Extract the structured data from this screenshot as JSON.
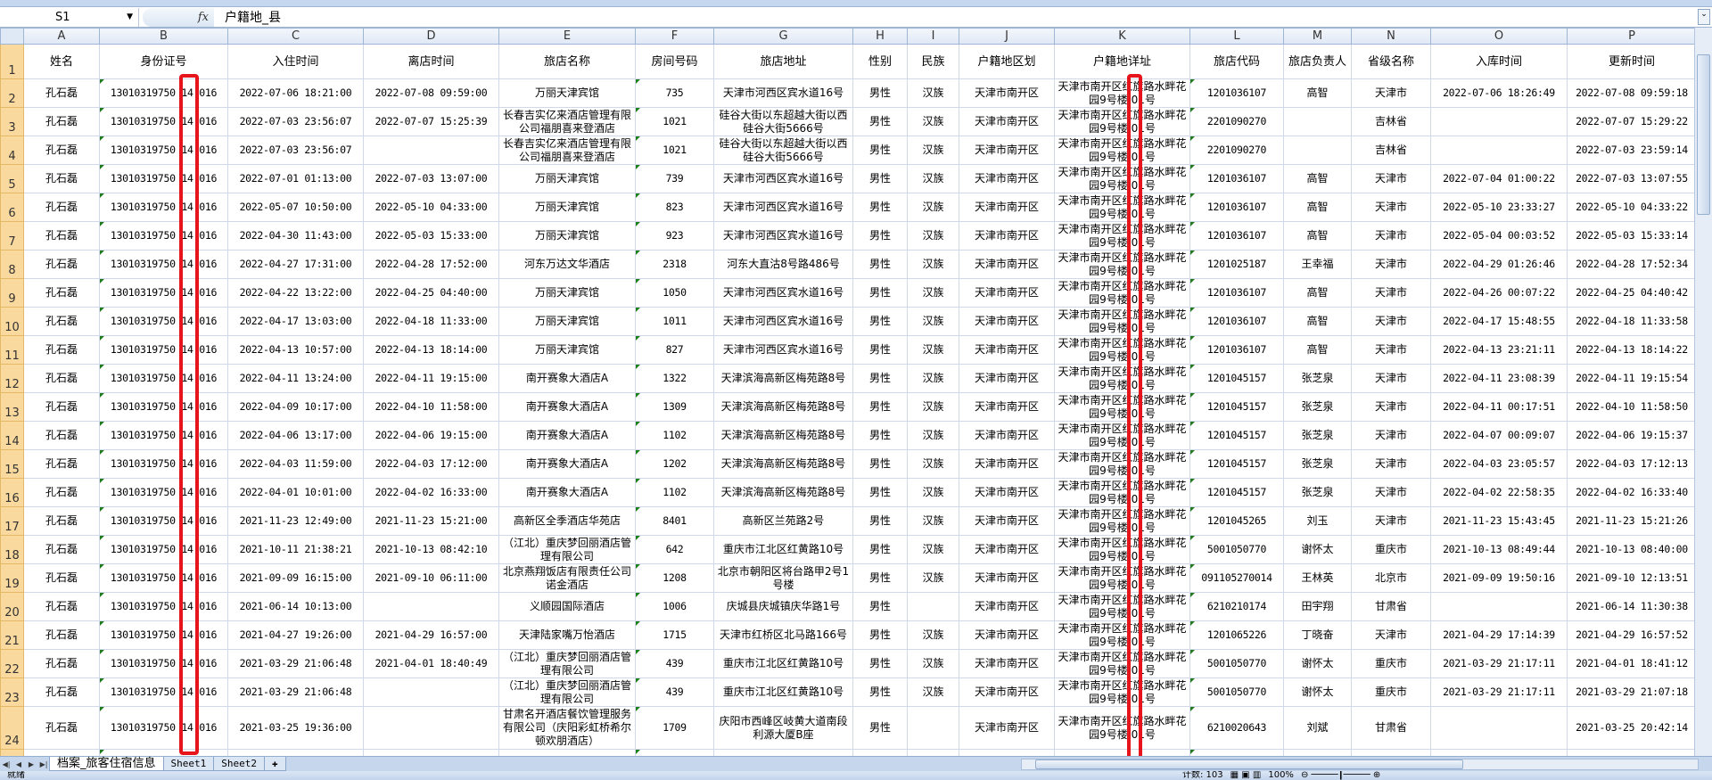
{
  "formula_bar": {
    "name_box": "S1",
    "fx_label": "fx",
    "formula": "户籍地_县"
  },
  "columns": [
    "A",
    "B",
    "C",
    "D",
    "E",
    "F",
    "G",
    "H",
    "I",
    "J",
    "K",
    "L",
    "M",
    "N",
    "O",
    "P"
  ],
  "headers": [
    "姓名",
    "身份证号",
    "入住时间",
    "离店时间",
    "旅店名称",
    "房间号码",
    "旅店地址",
    "性别",
    "民族",
    "户籍地区划",
    "户籍地详址",
    "旅店代码",
    "旅店负责人",
    "省级名称",
    "入库时间",
    "更新时间"
  ],
  "rows": [
    [
      "孔石磊",
      "13010319750 14 016",
      "2022-07-06 18:21:00",
      "2022-07-08 09:59:00",
      "万丽天津宾馆",
      "735",
      "天津市河西区宾水道16号",
      "男性",
      "汉族",
      "天津市南开区",
      "天津市南开区红旗路水畔花园9号楼 01号",
      "1201036107",
      "高智",
      "天津市",
      "2022-07-06 18:26:49",
      "2022-07-08 09:59:18"
    ],
    [
      "孔石磊",
      "13010319750 14 016",
      "2022-07-03 23:56:07",
      "2022-07-07 15:25:39",
      "长春吉实亿来酒店管理有限公司福朋喜来登酒店",
      "1021",
      "硅谷大街以东超越大街以西硅谷大街5666号",
      "男性",
      "汉族",
      "天津市南开区",
      "天津市南开区红旗路水畔花园9号楼 01号",
      "2201090270",
      "",
      "吉林省",
      "",
      "2022-07-07 15:29:22"
    ],
    [
      "孔石磊",
      "13010319750 14 016",
      "2022-07-03 23:56:07",
      "",
      "长春吉实亿来酒店管理有限公司福朋喜来登酒店",
      "1021",
      "硅谷大街以东超越大街以西硅谷大街5666号",
      "男性",
      "汉族",
      "天津市南开区",
      "天津市南开区红旗路水畔花园9号楼 01号",
      "2201090270",
      "",
      "吉林省",
      "",
      "2022-07-03 23:59:14"
    ],
    [
      "孔石磊",
      "13010319750 14 016",
      "2022-07-01 01:13:00",
      "2022-07-03 13:07:00",
      "万丽天津宾馆",
      "739",
      "天津市河西区宾水道16号",
      "男性",
      "汉族",
      "天津市南开区",
      "天津市南开区红旗路水畔花园9号楼 01号",
      "1201036107",
      "高智",
      "天津市",
      "2022-07-04 01:00:22",
      "2022-07-03 13:07:55"
    ],
    [
      "孔石磊",
      "13010319750 14 016",
      "2022-05-07 10:50:00",
      "2022-05-10 04:33:00",
      "万丽天津宾馆",
      "823",
      "天津市河西区宾水道16号",
      "男性",
      "汉族",
      "天津市南开区",
      "天津市南开区红旗路水畔花园9号楼 01号",
      "1201036107",
      "高智",
      "天津市",
      "2022-05-10 23:33:27",
      "2022-05-10 04:33:22"
    ],
    [
      "孔石磊",
      "13010319750 14 016",
      "2022-04-30 11:43:00",
      "2022-05-03 15:33:00",
      "万丽天津宾馆",
      "923",
      "天津市河西区宾水道16号",
      "男性",
      "汉族",
      "天津市南开区",
      "天津市南开区红旗路水畔花园9号楼 01号",
      "1201036107",
      "高智",
      "天津市",
      "2022-05-04 00:03:52",
      "2022-05-03 15:33:14"
    ],
    [
      "孔石磊",
      "13010319750 14 016",
      "2022-04-27 17:31:00",
      "2022-04-28 17:52:00",
      "河东万达文华酒店",
      "2318",
      "河东大直沽8号路486号",
      "男性",
      "汉族",
      "天津市南开区",
      "天津市南开区红旗路水畔花园9号楼 01号",
      "1201025187",
      "王幸福",
      "天津市",
      "2022-04-29 01:26:46",
      "2022-04-28 17:52:34"
    ],
    [
      "孔石磊",
      "13010319750 14 016",
      "2022-04-22 13:22:00",
      "2022-04-25 04:40:00",
      "万丽天津宾馆",
      "1050",
      "天津市河西区宾水道16号",
      "男性",
      "汉族",
      "天津市南开区",
      "天津市南开区红旗路水畔花园9号楼 01号",
      "1201036107",
      "高智",
      "天津市",
      "2022-04-26 00:07:22",
      "2022-04-25 04:40:42"
    ],
    [
      "孔石磊",
      "13010319750 14 016",
      "2022-04-17 13:03:00",
      "2022-04-18 11:33:00",
      "万丽天津宾馆",
      "1011",
      "天津市河西区宾水道16号",
      "男性",
      "汉族",
      "天津市南开区",
      "天津市南开区红旗路水畔花园9号楼 01号",
      "1201036107",
      "高智",
      "天津市",
      "2022-04-17 15:48:55",
      "2022-04-18 11:33:58"
    ],
    [
      "孔石磊",
      "13010319750 14 016",
      "2022-04-13 10:57:00",
      "2022-04-13 18:14:00",
      "万丽天津宾馆",
      "827",
      "天津市河西区宾水道16号",
      "男性",
      "汉族",
      "天津市南开区",
      "天津市南开区红旗路水畔花园9号楼 01号",
      "1201036107",
      "高智",
      "天津市",
      "2022-04-13 23:21:11",
      "2022-04-13 18:14:22"
    ],
    [
      "孔石磊",
      "13010319750 14 016",
      "2022-04-11 13:24:00",
      "2022-04-11 19:15:00",
      "南开赛象大酒店A",
      "1322",
      "天津滨海高新区梅苑路8号",
      "男性",
      "汉族",
      "天津市南开区",
      "天津市南开区红旗路水畔花园9号楼 01号",
      "1201045157",
      "张芝泉",
      "天津市",
      "2022-04-11 23:08:39",
      "2022-04-11 19:15:54"
    ],
    [
      "孔石磊",
      "13010319750 14 016",
      "2022-04-09 10:17:00",
      "2022-04-10 11:58:00",
      "南开赛象大酒店A",
      "1309",
      "天津滨海高新区梅苑路8号",
      "男性",
      "汉族",
      "天津市南开区",
      "天津市南开区红旗路水畔花园9号楼 01号",
      "1201045157",
      "张芝泉",
      "天津市",
      "2022-04-11 00:17:51",
      "2022-04-10 11:58:50"
    ],
    [
      "孔石磊",
      "13010319750 14 016",
      "2022-04-06 13:17:00",
      "2022-04-06 19:15:00",
      "南开赛象大酒店A",
      "1102",
      "天津滨海高新区梅苑路8号",
      "男性",
      "汉族",
      "天津市南开区",
      "天津市南开区红旗路水畔花园9号楼 01号",
      "1201045157",
      "张芝泉",
      "天津市",
      "2022-04-07 00:09:07",
      "2022-04-06 19:15:37"
    ],
    [
      "孔石磊",
      "13010319750 14 016",
      "2022-04-03 11:59:00",
      "2022-04-03 17:12:00",
      "南开赛象大酒店A",
      "1202",
      "天津滨海高新区梅苑路8号",
      "男性",
      "汉族",
      "天津市南开区",
      "天津市南开区红旗路水畔花园9号楼 01号",
      "1201045157",
      "张芝泉",
      "天津市",
      "2022-04-03 23:05:57",
      "2022-04-03 17:12:13"
    ],
    [
      "孔石磊",
      "13010319750 14 016",
      "2022-04-01 10:01:00",
      "2022-04-02 16:33:00",
      "南开赛象大酒店A",
      "1102",
      "天津滨海高新区梅苑路8号",
      "男性",
      "汉族",
      "天津市南开区",
      "天津市南开区红旗路水畔花园9号楼 01号",
      "1201045157",
      "张芝泉",
      "天津市",
      "2022-04-02 22:58:35",
      "2022-04-02 16:33:40"
    ],
    [
      "孔石磊",
      "13010319750 14 016",
      "2021-11-23 12:49:00",
      "2021-11-23 15:21:00",
      "高新区全季酒店华苑店",
      "8401",
      "高新区兰苑路2号",
      "男性",
      "汉族",
      "天津市南开区",
      "天津市南开区红旗路水畔花园9号楼 01号",
      "1201045265",
      "刘玉",
      "天津市",
      "2021-11-23 15:43:45",
      "2021-11-23 15:21:26"
    ],
    [
      "孔石磊",
      "13010319750 14 016",
      "2021-10-11 21:38:21",
      "2021-10-13 08:42:10",
      "（江北）重庆梦回丽酒店管理有限公司",
      "642",
      "重庆市江北区红黄路10号",
      "男性",
      "汉族",
      "天津市南开区",
      "天津市南开区红旗路水畔花园9号楼 01号",
      "5001050770",
      "谢怀太",
      "重庆市",
      "2021-10-13 08:49:44",
      "2021-10-13 08:40:00"
    ],
    [
      "孔石磊",
      "13010319750 14 016",
      "2021-09-09 16:15:00",
      "2021-09-10 06:11:00",
      "北京燕翔饭店有限责任公司诺金酒店",
      "1208",
      "北京市朝阳区将台路甲2号1号楼",
      "男性",
      "汉族",
      "天津市南开区",
      "天津市南开区红旗路水畔花园9号楼 01号",
      "091105270014",
      "王林英",
      "北京市",
      "2021-09-09 19:50:16",
      "2021-09-10 12:13:51"
    ],
    [
      "孔石磊",
      "13010319750 14 016",
      "2021-06-14 10:13:00",
      "",
      "义顺园国际酒店",
      "1006",
      "庆城县庆城镇庆华路1号",
      "男性",
      "",
      "天津市南开区",
      "天津市南开区红旗路水畔花园9号楼 01号",
      "6210210174",
      "田宇翔",
      "甘肃省",
      "",
      "2021-06-14 11:30:38"
    ],
    [
      "孔石磊",
      "13010319750 14 016",
      "2021-04-27 19:26:00",
      "2021-04-29 16:57:00",
      "天津陆家嘴万怡酒店",
      "1715",
      "天津市红桥区北马路166号",
      "男性",
      "汉族",
      "天津市南开区",
      "天津市南开区红旗路水畔花园9号楼 01号",
      "1201065226",
      "丁晓奋",
      "天津市",
      "2021-04-29 17:14:39",
      "2021-04-29 16:57:52"
    ],
    [
      "孔石磊",
      "13010319750 14 016",
      "2021-03-29 21:06:48",
      "2021-04-01 18:40:49",
      "（江北）重庆梦回丽酒店管理有限公司",
      "439",
      "重庆市江北区红黄路10号",
      "男性",
      "汉族",
      "天津市南开区",
      "天津市南开区红旗路水畔花园9号楼 01号",
      "5001050770",
      "谢怀太",
      "重庆市",
      "2021-03-29 21:17:11",
      "2021-04-01 18:41:12"
    ],
    [
      "孔石磊",
      "13010319750 14 016",
      "2021-03-29 21:06:48",
      "",
      "（江北）重庆梦回丽酒店管理有限公司",
      "439",
      "重庆市江北区红黄路10号",
      "男性",
      "汉族",
      "天津市南开区",
      "天津市南开区红旗路水畔花园9号楼 01号",
      "5001050770",
      "谢怀太",
      "重庆市",
      "2021-03-29 21:17:11",
      "2021-03-29 21:07:18"
    ],
    [
      "孔石磊",
      "13010319750 14 016",
      "2021-03-25 19:36:00",
      "",
      "甘肃名开酒店餐饮管理服务有限公司（庆阳彩虹桥希尔顿欢朋酒店）",
      "1709",
      "庆阳市西峰区岐黄大道南段利源大厦B座",
      "男性",
      "",
      "天津市南开区",
      "天津市南开区红旗路水畔花园9号楼 01号",
      "6210020643",
      "刘斌",
      "甘肃省",
      "",
      "2021-03-25 20:42:14"
    ]
  ],
  "sheet_tabs": [
    "档案_旅客住宿信息",
    "Sheet1",
    "Sheet2"
  ],
  "active_tab": 0,
  "status_bar": {
    "ready": "就绪",
    "count": "计数: 103",
    "zoom": "100%"
  },
  "colors": {
    "highlight_box": "#e8141c",
    "row_header": "#f9d99e",
    "number_as_text_marker": "#1e7b1e"
  }
}
